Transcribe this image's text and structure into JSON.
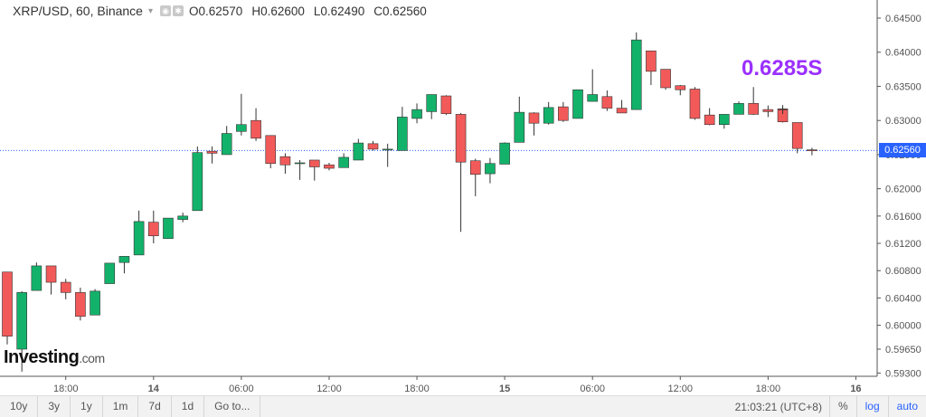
{
  "header": {
    "symbol": "XRP/USD, 60, Binance",
    "o_label": "O",
    "o_value": "0.62570",
    "h_label": "H",
    "h_value": "0.62600",
    "l_label": "L",
    "l_value": "0.62490",
    "c_label": "C",
    "c_value": "0.62560"
  },
  "annotation": "0.6285S",
  "brand": {
    "name": "Investing",
    "suffix": ".com"
  },
  "last_price_label": "0.62560",
  "footer": {
    "left_buttons": [
      "10y",
      "3y",
      "1y",
      "1m",
      "7d",
      "1d",
      "Go to..."
    ],
    "time": "21:03:21 (UTC+8)",
    "right_buttons": [
      "%",
      "log",
      "auto"
    ]
  },
  "colors": {
    "up": "#13b26b",
    "down": "#f25a5a",
    "price_line": "#2962ff",
    "annotation": "#9b30ff"
  },
  "chart_data": {
    "type": "candlestick",
    "title": "XRP/USD, 60, Binance",
    "y_ticks": [
      "0.64500",
      "0.64000",
      "0.63500",
      "0.63000",
      "0.62500",
      "0.62000",
      "0.61600",
      "0.61200",
      "0.60800",
      "0.60400",
      "0.60000",
      "0.59650",
      "0.59300"
    ],
    "x_ticks": [
      {
        "label": "18:00",
        "bar": 4
      },
      {
        "label": "14",
        "bar": 10
      },
      {
        "label": "06:00",
        "bar": 16
      },
      {
        "label": "12:00",
        "bar": 22
      },
      {
        "label": "18:00",
        "bar": 28
      },
      {
        "label": "15",
        "bar": 34
      },
      {
        "label": "06:00",
        "bar": 40
      },
      {
        "label": "12:00",
        "bar": 46
      },
      {
        "label": "18:00",
        "bar": 52
      },
      {
        "label": "16",
        "bar": 58
      }
    ],
    "last_price": 0.6256,
    "candles": [
      {
        "o": 0.6078,
        "h": 0.6078,
        "l": 0.5972,
        "c": 0.5984
      },
      {
        "o": 0.5965,
        "h": 0.605,
        "l": 0.5932,
        "c": 0.6048
      },
      {
        "o": 0.6051,
        "h": 0.6092,
        "l": 0.6051,
        "c": 0.6087
      },
      {
        "o": 0.6087,
        "h": 0.6087,
        "l": 0.6045,
        "c": 0.6063
      },
      {
        "o": 0.6063,
        "h": 0.6068,
        "l": 0.6038,
        "c": 0.6048
      },
      {
        "o": 0.6048,
        "h": 0.6055,
        "l": 0.6007,
        "c": 0.6013
      },
      {
        "o": 0.6015,
        "h": 0.6053,
        "l": 0.6015,
        "c": 0.605
      },
      {
        "o": 0.6061,
        "h": 0.6091,
        "l": 0.6061,
        "c": 0.6091
      },
      {
        "o": 0.6092,
        "h": 0.6101,
        "l": 0.6076,
        "c": 0.6101
      },
      {
        "o": 0.6103,
        "h": 0.6168,
        "l": 0.6103,
        "c": 0.6152
      },
      {
        "o": 0.6151,
        "h": 0.6168,
        "l": 0.612,
        "c": 0.6131
      },
      {
        "o": 0.6127,
        "h": 0.6157,
        "l": 0.6127,
        "c": 0.6157
      },
      {
        "o": 0.6155,
        "h": 0.6165,
        "l": 0.6151,
        "c": 0.616
      },
      {
        "o": 0.6168,
        "h": 0.6262,
        "l": 0.6168,
        "c": 0.6253
      },
      {
        "o": 0.6255,
        "h": 0.6262,
        "l": 0.6237,
        "c": 0.6252
      },
      {
        "o": 0.625,
        "h": 0.6292,
        "l": 0.625,
        "c": 0.6281
      },
      {
        "o": 0.6284,
        "h": 0.6339,
        "l": 0.6278,
        "c": 0.6294
      },
      {
        "o": 0.63,
        "h": 0.6318,
        "l": 0.627,
        "c": 0.6274
      },
      {
        "o": 0.6278,
        "h": 0.6278,
        "l": 0.623,
        "c": 0.6237
      },
      {
        "o": 0.6247,
        "h": 0.6252,
        "l": 0.6222,
        "c": 0.6235
      },
      {
        "o": 0.6238,
        "h": 0.6242,
        "l": 0.6213,
        "c": 0.6238
      },
      {
        "o": 0.6242,
        "h": 0.6242,
        "l": 0.6212,
        "c": 0.6232
      },
      {
        "o": 0.6235,
        "h": 0.6238,
        "l": 0.6227,
        "c": 0.623
      },
      {
        "o": 0.6231,
        "h": 0.6252,
        "l": 0.6231,
        "c": 0.6246
      },
      {
        "o": 0.6242,
        "h": 0.6273,
        "l": 0.6242,
        "c": 0.6267
      },
      {
        "o": 0.6266,
        "h": 0.627,
        "l": 0.6256,
        "c": 0.6258
      },
      {
        "o": 0.6258,
        "h": 0.6266,
        "l": 0.6232,
        "c": 0.6258
      },
      {
        "o": 0.6256,
        "h": 0.632,
        "l": 0.6256,
        "c": 0.6305
      },
      {
        "o": 0.6303,
        "h": 0.6325,
        "l": 0.6296,
        "c": 0.6316
      },
      {
        "o": 0.6313,
        "h": 0.6338,
        "l": 0.6302,
        "c": 0.6338
      },
      {
        "o": 0.6336,
        "h": 0.6337,
        "l": 0.6308,
        "c": 0.631
      },
      {
        "o": 0.6309,
        "h": 0.6311,
        "l": 0.6137,
        "c": 0.6239
      },
      {
        "o": 0.6241,
        "h": 0.6244,
        "l": 0.6189,
        "c": 0.6221
      },
      {
        "o": 0.6222,
        "h": 0.6245,
        "l": 0.6208,
        "c": 0.6237
      },
      {
        "o": 0.6236,
        "h": 0.6268,
        "l": 0.6236,
        "c": 0.6267
      },
      {
        "o": 0.6268,
        "h": 0.6335,
        "l": 0.6268,
        "c": 0.6312
      },
      {
        "o": 0.6311,
        "h": 0.6312,
        "l": 0.6278,
        "c": 0.6296
      },
      {
        "o": 0.6296,
        "h": 0.6327,
        "l": 0.6294,
        "c": 0.6319
      },
      {
        "o": 0.632,
        "h": 0.6327,
        "l": 0.6298,
        "c": 0.63
      },
      {
        "o": 0.6303,
        "h": 0.6345,
        "l": 0.6303,
        "c": 0.6345
      },
      {
        "o": 0.6328,
        "h": 0.6375,
        "l": 0.6328,
        "c": 0.6338
      },
      {
        "o": 0.6335,
        "h": 0.6344,
        "l": 0.6314,
        "c": 0.6318
      },
      {
        "o": 0.6318,
        "h": 0.633,
        "l": 0.6311,
        "c": 0.6311
      },
      {
        "o": 0.6316,
        "h": 0.6429,
        "l": 0.6316,
        "c": 0.6418
      },
      {
        "o": 0.6402,
        "h": 0.6402,
        "l": 0.6352,
        "c": 0.6372
      },
      {
        "o": 0.6375,
        "h": 0.6375,
        "l": 0.6345,
        "c": 0.6348
      },
      {
        "o": 0.6351,
        "h": 0.6352,
        "l": 0.6337,
        "c": 0.6345
      },
      {
        "o": 0.6346,
        "h": 0.6349,
        "l": 0.6301,
        "c": 0.6303
      },
      {
        "o": 0.6308,
        "h": 0.6318,
        "l": 0.6293,
        "c": 0.6294
      },
      {
        "o": 0.6294,
        "h": 0.6309,
        "l": 0.6288,
        "c": 0.6309
      },
      {
        "o": 0.6309,
        "h": 0.6328,
        "l": 0.6309,
        "c": 0.6325
      },
      {
        "o": 0.6325,
        "h": 0.6349,
        "l": 0.6308,
        "c": 0.6309
      },
      {
        "o": 0.6316,
        "h": 0.6322,
        "l": 0.6305,
        "c": 0.6313
      },
      {
        "o": 0.6317,
        "h": 0.632,
        "l": 0.6297,
        "c": 0.6298
      },
      {
        "o": 0.6297,
        "h": 0.6297,
        "l": 0.6252,
        "c": 0.6259
      },
      {
        "o": 0.6257,
        "h": 0.626,
        "l": 0.6249,
        "c": 0.6256
      }
    ]
  }
}
